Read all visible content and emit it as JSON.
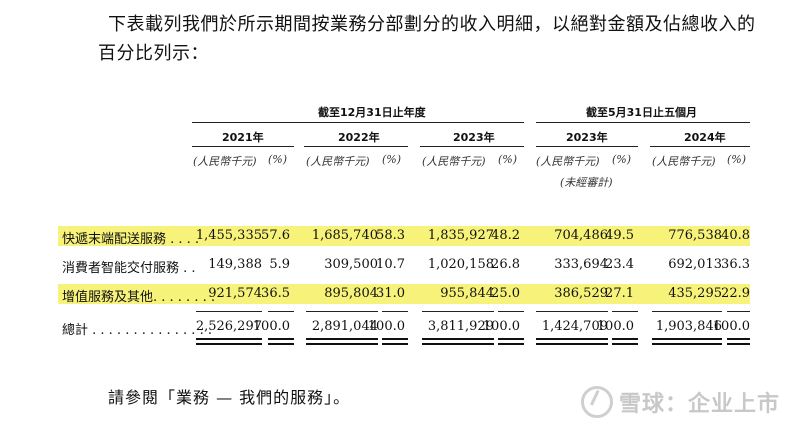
{
  "intro": {
    "line1": "下表載列我們於所示期間按業務分部劃分的收入明細，以絕對金額及佔總收入的",
    "line2": "百分比列示："
  },
  "header": {
    "group_fy": "截至12月31日止年度",
    "group_5m": "截至5月31日止五個月",
    "years": [
      "2021年",
      "2022年",
      "2023年",
      "2023年",
      "2024年"
    ],
    "unit_rmb": "(人民幣千元)",
    "unit_pct": "(%)",
    "unaudited": "(未經審計)"
  },
  "rows": [
    {
      "label": "快遞末端配送服務 . . . .",
      "highlight": true,
      "values": [
        "1,455,335",
        "57.6",
        "1,685,740",
        "58.3",
        "1,835,927",
        "48.2",
        "704,486",
        "49.5",
        "776,538",
        "40.8"
      ]
    },
    {
      "label": "消費者智能交付服務 . .",
      "highlight": false,
      "values": [
        "149,388",
        "5.9",
        "309,500",
        "10.7",
        "1,020,158",
        "26.8",
        "333,694",
        "23.4",
        "692,013",
        "36.3"
      ]
    },
    {
      "label": "增值服務及其他. . . . . . . .",
      "highlight": true,
      "values": [
        "921,574",
        "36.5",
        "895,804",
        "31.0",
        "955,844",
        "25.0",
        "386,529",
        "27.1",
        "435,295",
        "22.9"
      ]
    }
  ],
  "total": {
    "label": "總計 . . . . . . . . . . . . . . .",
    "values": [
      "2,526,297",
      "100.0",
      "2,891,044",
      "100.0",
      "3,811,929",
      "100.0",
      "1,424,709",
      "100.0",
      "1,903,846",
      "100.0"
    ]
  },
  "footer": "請參閱「業務 — 我們的服務」。",
  "watermark": "雪球：企业上市",
  "colors": {
    "highlight": "#f7f37a",
    "text": "#111111"
  }
}
